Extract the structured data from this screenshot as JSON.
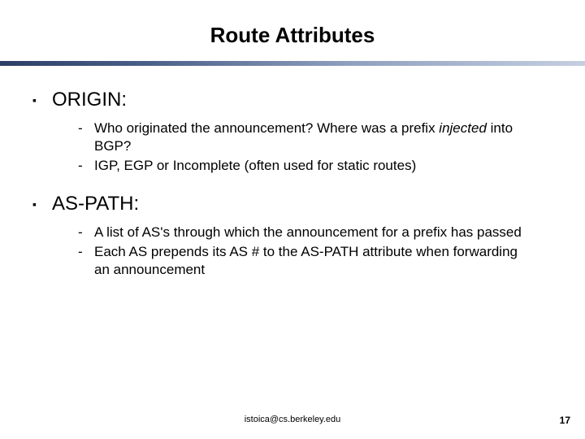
{
  "title": {
    "text": "Route Attributes",
    "fontsize": 26
  },
  "bullets": [
    {
      "label": "ORIGIN:",
      "subs": [
        {
          "parts": [
            {
              "t": "Who originated the announcement? Where was a prefix "
            },
            {
              "t": "injected",
              "italic": true
            },
            {
              "t": " into BGP?"
            }
          ]
        },
        {
          "parts": [
            {
              "t": "IGP, EGP or Incomplete (often used for static routes)"
            }
          ]
        }
      ]
    },
    {
      "label": "AS-PATH:",
      "subs": [
        {
          "parts": [
            {
              "t": "A list of AS's through which the announcement for a prefix has passed"
            }
          ]
        },
        {
          "parts": [
            {
              "t": "Each AS prepends its AS # to the AS-PATH attribute when forwarding an announcement"
            }
          ]
        }
      ]
    }
  ],
  "footer": {
    "text": "istoica@cs.berkeley.edu"
  },
  "pagenum": {
    "text": "17"
  },
  "markers": {
    "top": "▪",
    "sub": "-"
  },
  "colors": {
    "text": "#000000",
    "bg": "#ffffff"
  }
}
